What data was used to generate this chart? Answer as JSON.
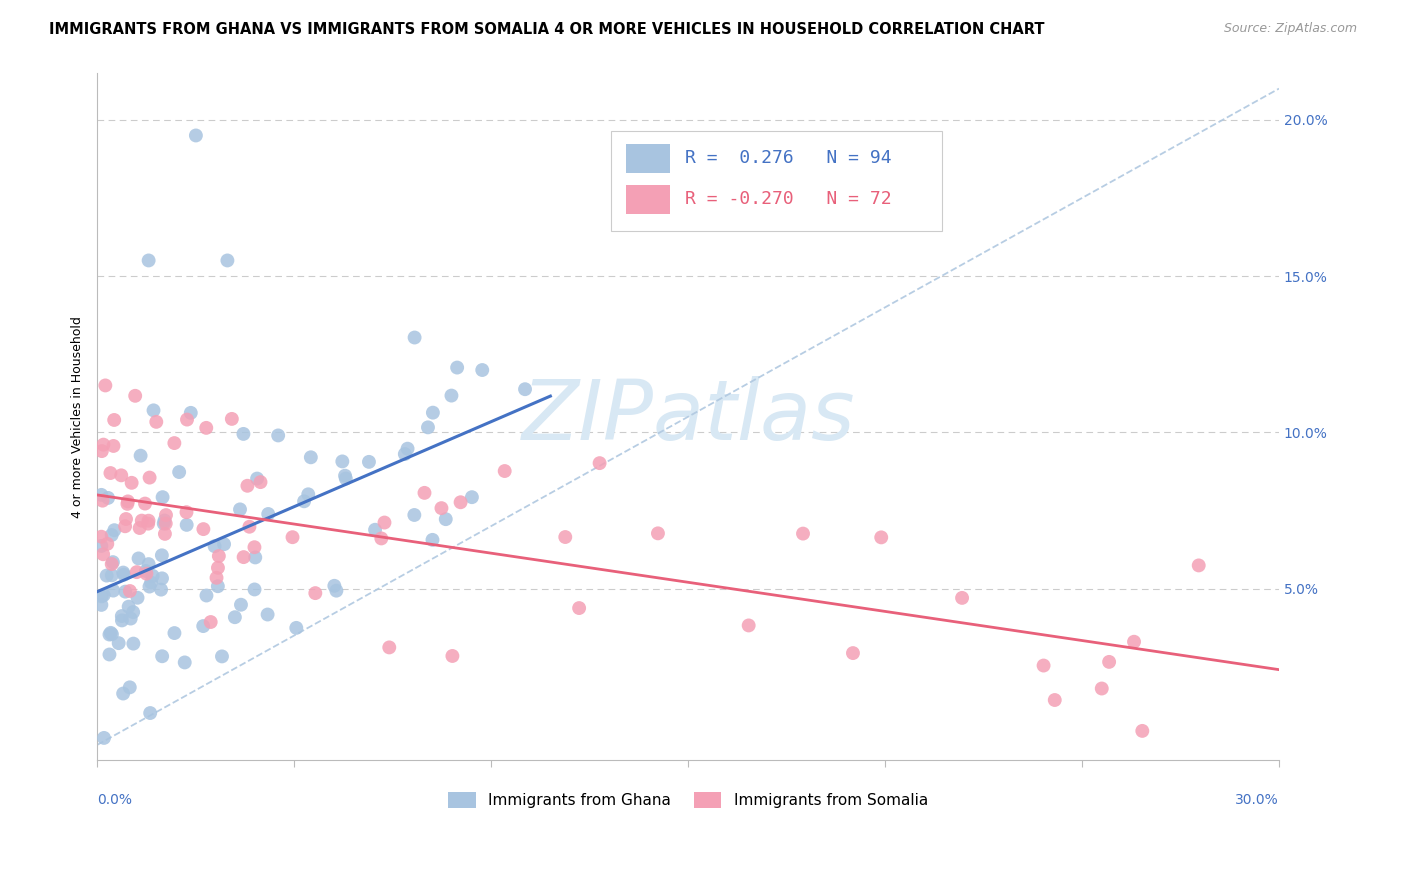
{
  "title": "IMMIGRANTS FROM GHANA VS IMMIGRANTS FROM SOMALIA 4 OR MORE VEHICLES IN HOUSEHOLD CORRELATION CHART",
  "source": "Source: ZipAtlas.com",
  "ylabel": "4 or more Vehicles in Household",
  "xmin": 0.0,
  "xmax": 0.3,
  "ymin": -0.005,
  "ymax": 0.215,
  "ghana_R": 0.276,
  "ghana_N": 94,
  "somalia_R": -0.27,
  "somalia_N": 72,
  "ghana_color": "#a8c4e0",
  "somalia_color": "#f4a0b5",
  "ghana_line_color": "#4472c4",
  "somalia_line_color": "#e8607a",
  "dash_line_color": "#b0c8e0",
  "watermark_color": "#d8e8f4",
  "title_fontsize": 10.5,
  "axis_label_fontsize": 9,
  "tick_fontsize": 10,
  "legend_fontsize": 13,
  "source_fontsize": 9
}
